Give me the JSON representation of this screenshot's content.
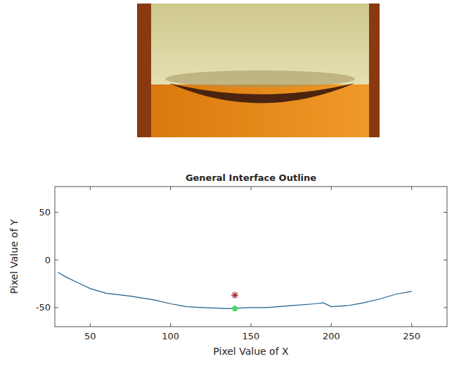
{
  "chart_data": {
    "type": "line",
    "title": "General Interface Outline",
    "x_label": "Pixel Value of X",
    "y_label": "Pixel Value of Y",
    "x": [
      30,
      35,
      40,
      45,
      50,
      60,
      75,
      90,
      100,
      110,
      120,
      135,
      150,
      160,
      175,
      190,
      195,
      200,
      210,
      220,
      230,
      240,
      250
    ],
    "values": [
      -13,
      -18,
      -22,
      -26,
      -30,
      -35,
      -38,
      -42,
      -46,
      -49,
      -50,
      -51,
      -50,
      -50,
      -48,
      -46,
      -45,
      -49,
      -48,
      -45,
      -41,
      -36,
      -33
    ],
    "color": "#1f5f8b",
    "points": [
      {
        "x": 140,
        "y": -37,
        "color": "#a0222a",
        "marker": "asterisk"
      },
      {
        "x": 140,
        "y": -51,
        "color": "#4cd964",
        "marker": "circle"
      }
    ],
    "xlim": [
      28,
      272
    ],
    "ylim": [
      -70,
      77
    ],
    "xticks": [
      50,
      100,
      150,
      200,
      250
    ],
    "yticks": [
      -50,
      0,
      50
    ],
    "grid": false
  }
}
